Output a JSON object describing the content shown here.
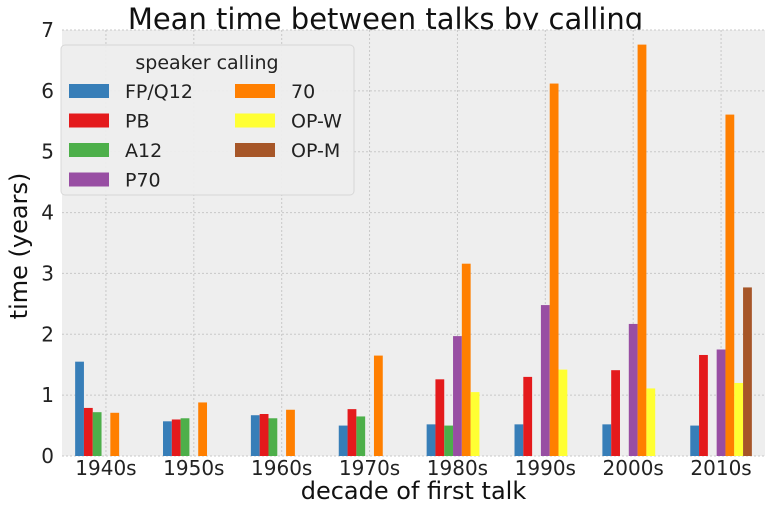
{
  "chart_data": {
    "type": "bar",
    "title": "Mean time between talks by calling",
    "xlabel": "decade of first talk",
    "ylabel": "time (years)",
    "categories": [
      "1940s",
      "1950s",
      "1960s",
      "1970s",
      "1980s",
      "1990s",
      "2000s",
      "2010s"
    ],
    "ylim": [
      0,
      7
    ],
    "yticks": [
      0,
      1,
      2,
      3,
      4,
      5,
      6,
      7
    ],
    "grid": true,
    "legend": {
      "title": "speaker calling",
      "position": "top-left",
      "columns": 2
    },
    "series": [
      {
        "name": "FP/Q12",
        "color": "#377eb8",
        "values": [
          1.55,
          0.57,
          0.67,
          0.5,
          0.52,
          0.52,
          0.52,
          0.5
        ]
      },
      {
        "name": "PB",
        "color": "#e41a1c",
        "values": [
          0.79,
          0.6,
          0.69,
          0.77,
          1.26,
          1.3,
          1.41,
          1.66
        ]
      },
      {
        "name": "A12",
        "color": "#4daf4a",
        "values": [
          0.72,
          0.62,
          0.62,
          0.65,
          0.5,
          null,
          null,
          null
        ]
      },
      {
        "name": "P70",
        "color": "#984ea3",
        "values": [
          null,
          null,
          null,
          null,
          1.97,
          2.48,
          2.17,
          1.75
        ]
      },
      {
        "name": "70",
        "color": "#ff7f00",
        "values": [
          0.71,
          0.88,
          0.76,
          1.65,
          3.16,
          6.12,
          6.76,
          5.61
        ]
      },
      {
        "name": "OP-W",
        "color": "#ffff33",
        "values": [
          null,
          null,
          null,
          null,
          1.05,
          1.42,
          1.11,
          1.2
        ]
      },
      {
        "name": "OP-M",
        "color": "#a65628",
        "values": [
          null,
          null,
          null,
          null,
          null,
          null,
          null,
          2.77
        ]
      }
    ]
  }
}
